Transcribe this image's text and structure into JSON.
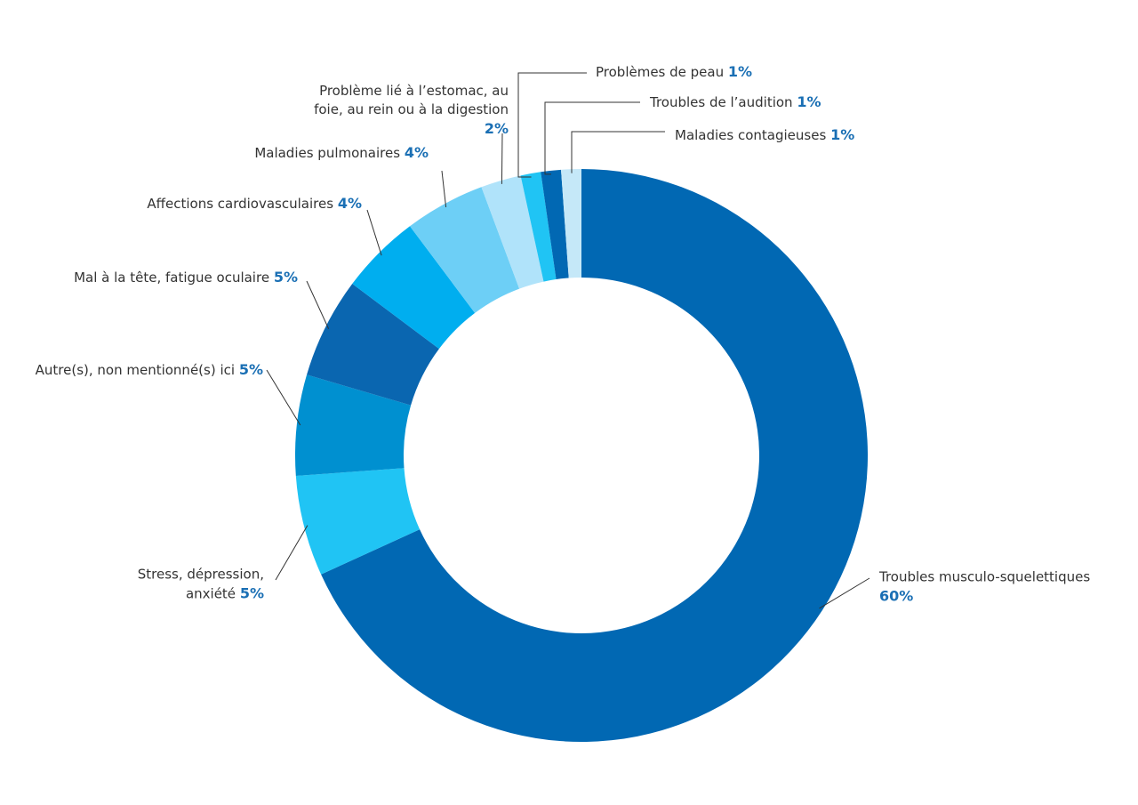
{
  "chart_data": {
    "type": "donut",
    "categories": [
      "Troubles musculo-squelettiques",
      "Stress, dépression, anxiété",
      "Autre(s), non mentionné(s) ici",
      "Mal à la tête, fatigue oculaire",
      "Affections cardiovasculaires",
      "Maladies pulmonaires",
      "Problème lié à l’estomac, au foie, au rein ou à la digestion",
      "Problèmes de peau",
      "Troubles de l’audition",
      "Maladies contagieuses"
    ],
    "values": [
      60,
      5,
      5,
      5,
      4,
      4,
      2,
      1,
      1,
      1
    ],
    "value_labels": [
      "60%",
      "5%",
      "5%",
      "5%",
      "4%",
      "4%",
      "2%",
      "1%",
      "1%",
      "1%"
    ],
    "colors": [
      "#0168b3",
      "#20c4f4",
      "#0090d0",
      "#0a66b0",
      "#00aeef",
      "#6dcff6",
      "#b0e3fa",
      "#20c4f4",
      "#0168b3",
      "#c5e8f8"
    ]
  }
}
